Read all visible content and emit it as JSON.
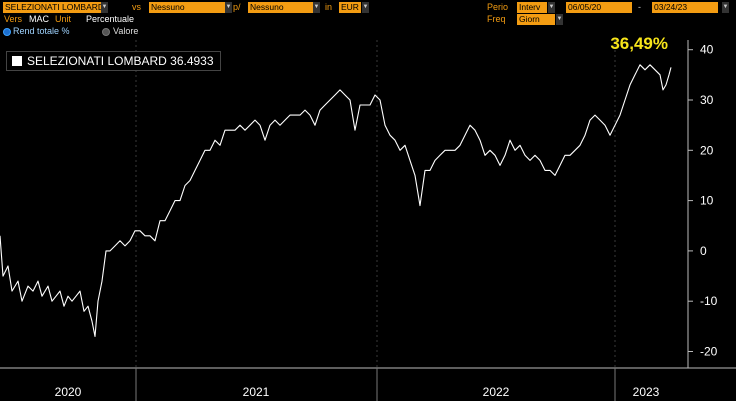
{
  "toolbar": {
    "security": "SELEZIONATI LOMBARD",
    "vs_label": "vs",
    "vs_value": "Nessuno",
    "per_label": "p/",
    "per_value": "Nessuno",
    "in_label": "in",
    "currency": "EUR",
    "period_label": "Perio",
    "period_value": "Interv",
    "date_from": "06/05/20",
    "date_to": "03/24/23",
    "freq_label": "Freq",
    "freq_value": "Giorn",
    "vers_label": "Vers",
    "vers_value": "MAC",
    "unit_label": "Unit",
    "unit_value": "Percentuale"
  },
  "options": {
    "rend_totale": "Rend totale %",
    "valore": "Valore",
    "selected": "rend_totale"
  },
  "colors": {
    "field_bg": "#f39c12",
    "label": "#f39c12",
    "line": "#ffffff",
    "last_value": "#f7e51a",
    "grid": "#3a3a3a"
  },
  "chart_data": {
    "type": "line",
    "legend": "SELEZIONATI LOMBARD 36.4933",
    "last_value_label": "36,49%",
    "ylim": [
      -22,
      42
    ],
    "y_ticks": [
      "40",
      "30",
      "20",
      "10",
      "0",
      "-10",
      "-20"
    ],
    "x_ticks": [
      "2020",
      "2021",
      "2022",
      "2023"
    ],
    "grid": "vertical year separators only",
    "x_range": [
      "2020-06-05",
      "2023-03-24"
    ],
    "series": [
      {
        "values": [
          [
            0,
            3
          ],
          [
            3,
            -5
          ],
          [
            8,
            -3
          ],
          [
            12,
            -8
          ],
          [
            18,
            -6
          ],
          [
            22,
            -10
          ],
          [
            28,
            -7
          ],
          [
            33,
            -8
          ],
          [
            38,
            -6
          ],
          [
            42,
            -9
          ],
          [
            48,
            -7
          ],
          [
            52,
            -10
          ],
          [
            56,
            -9
          ],
          [
            60,
            -8
          ],
          [
            64,
            -11
          ],
          [
            68,
            -9
          ],
          [
            72,
            -10
          ],
          [
            76,
            -9
          ],
          [
            80,
            -8
          ],
          [
            84,
            -12
          ],
          [
            88,
            -11
          ],
          [
            92,
            -14
          ],
          [
            95,
            -17
          ],
          [
            98,
            -10
          ],
          [
            102,
            -6
          ],
          [
            106,
            0
          ],
          [
            110,
            0
          ],
          [
            115,
            1
          ],
          [
            120,
            2
          ],
          [
            125,
            1
          ],
          [
            130,
            2
          ],
          [
            135,
            4
          ],
          [
            140,
            4
          ],
          [
            145,
            3
          ],
          [
            150,
            3
          ],
          [
            155,
            2
          ],
          [
            160,
            6
          ],
          [
            165,
            6
          ],
          [
            170,
            8
          ],
          [
            175,
            10
          ],
          [
            180,
            10
          ],
          [
            185,
            13
          ],
          [
            190,
            14
          ],
          [
            195,
            16
          ],
          [
            200,
            18
          ],
          [
            205,
            20
          ],
          [
            210,
            20
          ],
          [
            215,
            22
          ],
          [
            220,
            21
          ],
          [
            225,
            24
          ],
          [
            230,
            24
          ],
          [
            235,
            24
          ],
          [
            240,
            25
          ],
          [
            245,
            24
          ],
          [
            250,
            25
          ],
          [
            255,
            26
          ],
          [
            260,
            25
          ],
          [
            265,
            22
          ],
          [
            270,
            25
          ],
          [
            275,
            26
          ],
          [
            280,
            25
          ],
          [
            285,
            26
          ],
          [
            290,
            27
          ],
          [
            295,
            27
          ],
          [
            300,
            27
          ],
          [
            305,
            28
          ],
          [
            310,
            27
          ],
          [
            315,
            25
          ],
          [
            320,
            28
          ],
          [
            325,
            29
          ],
          [
            330,
            30
          ],
          [
            335,
            31
          ],
          [
            340,
            32
          ],
          [
            345,
            31
          ],
          [
            350,
            30
          ],
          [
            355,
            24
          ],
          [
            360,
            29
          ],
          [
            365,
            29
          ],
          [
            370,
            29
          ],
          [
            375,
            31
          ],
          [
            380,
            30
          ],
          [
            385,
            25
          ],
          [
            390,
            23
          ],
          [
            395,
            22
          ],
          [
            400,
            20
          ],
          [
            405,
            21
          ],
          [
            410,
            18
          ],
          [
            415,
            15
          ],
          [
            420,
            9
          ],
          [
            425,
            16
          ],
          [
            430,
            16
          ],
          [
            435,
            18
          ],
          [
            440,
            19
          ],
          [
            445,
            20
          ],
          [
            450,
            20
          ],
          [
            455,
            20
          ],
          [
            460,
            21
          ],
          [
            465,
            23
          ],
          [
            470,
            25
          ],
          [
            475,
            24
          ],
          [
            480,
            22
          ],
          [
            485,
            19
          ],
          [
            490,
            20
          ],
          [
            495,
            19
          ],
          [
            500,
            17
          ],
          [
            505,
            19
          ],
          [
            510,
            22
          ],
          [
            515,
            20
          ],
          [
            520,
            21
          ],
          [
            525,
            19
          ],
          [
            530,
            18
          ],
          [
            535,
            19
          ],
          [
            540,
            18
          ],
          [
            545,
            16
          ],
          [
            550,
            16
          ],
          [
            555,
            15
          ],
          [
            560,
            17
          ],
          [
            565,
            19
          ],
          [
            570,
            19
          ],
          [
            575,
            20
          ],
          [
            580,
            21
          ],
          [
            585,
            23
          ],
          [
            590,
            26
          ],
          [
            595,
            27
          ],
          [
            600,
            26
          ],
          [
            605,
            25
          ],
          [
            610,
            23
          ],
          [
            615,
            25
          ],
          [
            620,
            27
          ],
          [
            625,
            30
          ],
          [
            630,
            33
          ],
          [
            635,
            35
          ],
          [
            640,
            37
          ],
          [
            645,
            36
          ],
          [
            650,
            37
          ],
          [
            655,
            36
          ],
          [
            660,
            35
          ],
          [
            663,
            32
          ],
          [
            666,
            33
          ],
          [
            669,
            35
          ],
          [
            671,
            36.49
          ]
        ]
      }
    ]
  }
}
